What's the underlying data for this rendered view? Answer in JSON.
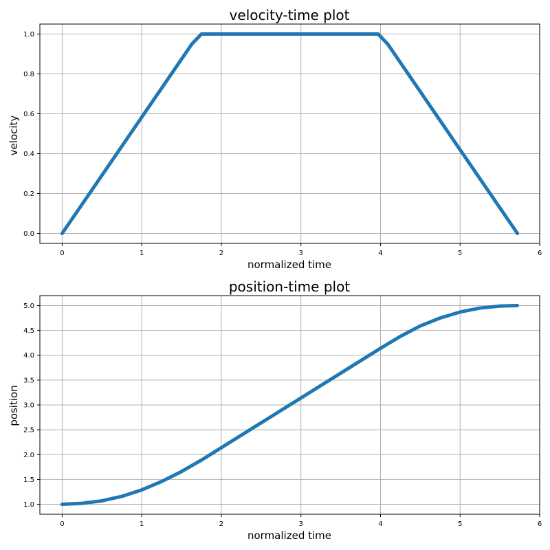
{
  "chart_data": [
    {
      "type": "line",
      "title": "velocity-time plot",
      "xlabel": "normalized time",
      "ylabel": "velocity",
      "xlim": [
        -0.28,
        6.0
      ],
      "ylim": [
        -0.05,
        1.05
      ],
      "xticks": [
        0,
        1,
        2,
        3,
        4,
        5,
        6
      ],
      "yticks": [
        0.0,
        0.2,
        0.4,
        0.6,
        0.8,
        1.0
      ],
      "xtick_labels": [
        "0",
        "1",
        "2",
        "3",
        "4",
        "5",
        "6"
      ],
      "ytick_labels": [
        "0.0",
        "0.2",
        "0.4",
        "0.6",
        "0.8",
        "1.0"
      ],
      "grid": true,
      "color": "#1f77b4",
      "series": [
        {
          "x": [
            0.0,
            1.63,
            1.75,
            3.97,
            4.09,
            5.72
          ],
          "y": [
            0.0,
            0.95,
            1.0,
            1.0,
            0.95,
            0.0
          ]
        }
      ]
    },
    {
      "type": "line",
      "title": "position-time plot",
      "xlabel": "normalized time",
      "ylabel": "position",
      "xlim": [
        -0.28,
        6.0
      ],
      "ylim": [
        0.8,
        5.2
      ],
      "xticks": [
        0,
        1,
        2,
        3,
        4,
        5,
        6
      ],
      "yticks": [
        1.0,
        1.5,
        2.0,
        2.5,
        3.0,
        3.5,
        4.0,
        4.5,
        5.0
      ],
      "xtick_labels": [
        "0",
        "1",
        "2",
        "3",
        "4",
        "5",
        "6"
      ],
      "ytick_labels": [
        "1.0",
        "1.5",
        "2.0",
        "2.5",
        "3.0",
        "3.5",
        "4.0",
        "4.5",
        "5.0"
      ],
      "grid": true,
      "color": "#1f77b4",
      "series": [
        {
          "x": [
            0.0,
            0.25,
            0.5,
            0.75,
            1.0,
            1.25,
            1.5,
            1.75,
            2.0,
            2.5,
            3.0,
            3.5,
            4.0,
            4.25,
            4.5,
            4.75,
            5.0,
            5.25,
            5.5,
            5.72
          ],
          "y": [
            1.0,
            1.02,
            1.07,
            1.16,
            1.29,
            1.46,
            1.66,
            1.89,
            2.14,
            2.64,
            3.14,
            3.64,
            4.14,
            4.38,
            4.59,
            4.75,
            4.87,
            4.95,
            4.99,
            5.0
          ]
        }
      ]
    }
  ]
}
